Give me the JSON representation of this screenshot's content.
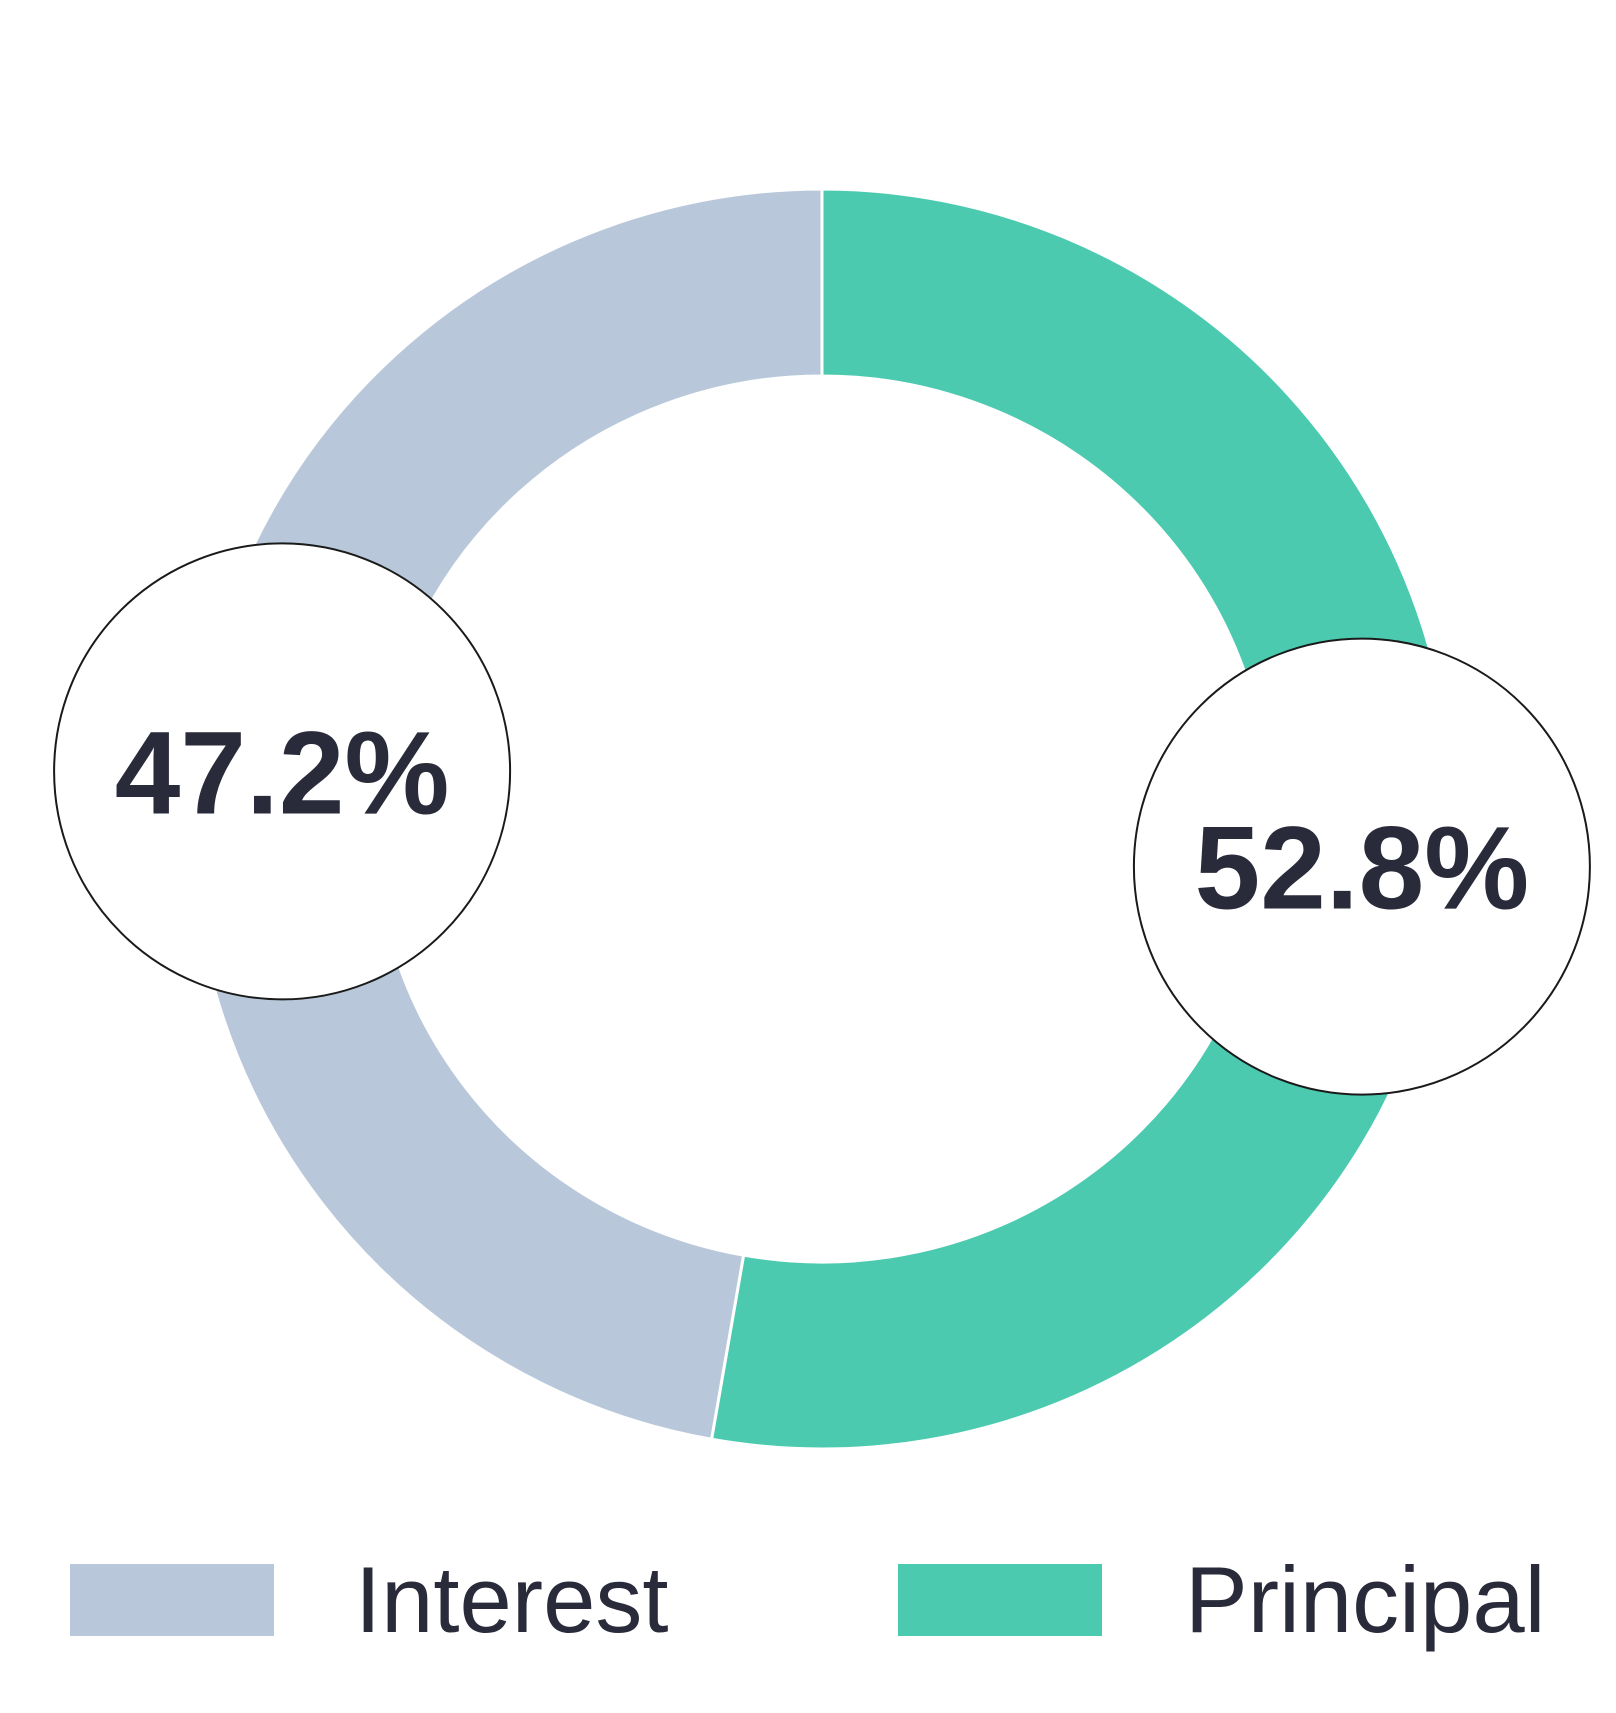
{
  "chart_data": {
    "type": "pie",
    "style": "donut",
    "start_angle": "12 o'clock",
    "direction": "clockwise",
    "categories": [
      "Principal",
      "Interest"
    ],
    "values": [
      52.8,
      47.2
    ],
    "units": "%",
    "data_labels": [
      "52.8%",
      "47.2%"
    ],
    "colors": [
      "#4ccab0",
      "#b8c8da"
    ],
    "legend": {
      "position": "bottom",
      "items": [
        {
          "label": "Interest",
          "color": "#b8c8da"
        },
        {
          "label": "Principal",
          "color": "#4ccab0"
        }
      ]
    }
  }
}
